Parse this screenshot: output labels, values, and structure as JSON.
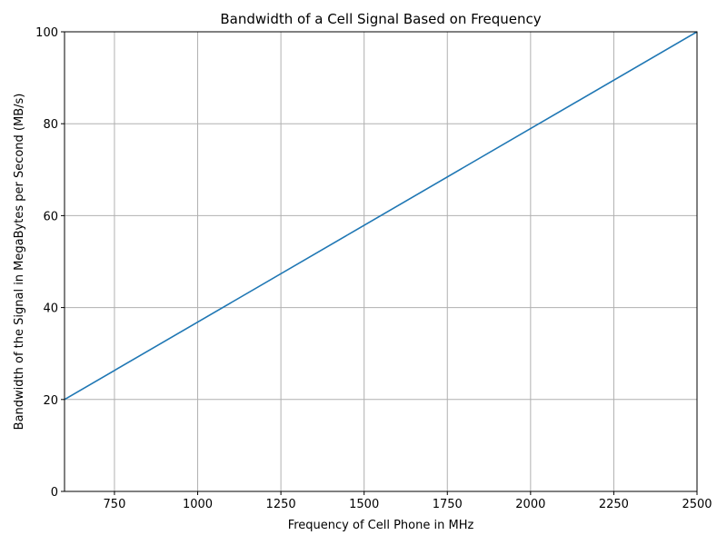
{
  "chart_data": {
    "type": "line",
    "title": "Bandwidth of a Cell Signal Based on Frequency",
    "xlabel": "Frequency of Cell Phone in MHz",
    "ylabel": "Bandwidth of the Signal in MegaBytes per Second (MB/s)",
    "xlim": [
      600,
      2500
    ],
    "ylim": [
      0,
      100
    ],
    "xticks": [
      750,
      1000,
      1250,
      1500,
      1750,
      2000,
      2250,
      2500
    ],
    "yticks": [
      0,
      20,
      40,
      60,
      80,
      100
    ],
    "grid": true,
    "series": [
      {
        "x": [
          600,
          2500
        ],
        "y": [
          20,
          100
        ],
        "color": "#1f77b4"
      }
    ]
  }
}
